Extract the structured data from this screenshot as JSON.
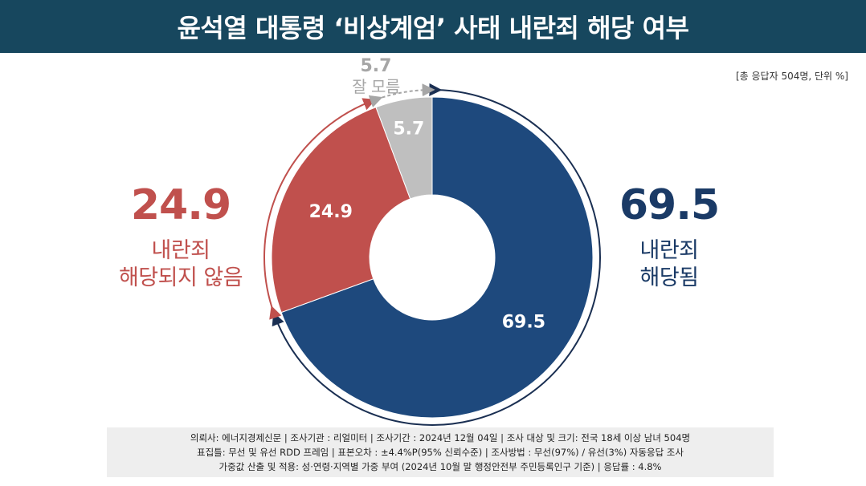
{
  "title": "윤석열 대통령 ‘비상계엄’ 사태 내란죄 해당 여부",
  "unit_note": "[총 응답자 504명, 단위 %]",
  "chart_data": {
    "type": "pie",
    "title": "윤석열 대통령 ‘비상계엄’ 사태 내란죄 해당 여부",
    "categories": [
      "내란죄 해당됨",
      "내란죄 해당되지 않음",
      "잘 모름"
    ],
    "values": [
      69.5,
      24.9,
      5.7
    ],
    "value_labels": [
      "69.5",
      "24.9",
      "5.7"
    ],
    "colors": [
      "#1e497d",
      "#c0504d",
      "#bfbfbf"
    ],
    "donut": true,
    "unit": "%"
  },
  "callouts": {
    "yes": {
      "value": "69.5",
      "line1": "내란죄",
      "line2": "해당됨",
      "color": "#1a3a66"
    },
    "no": {
      "value": "24.9",
      "line1": "내란죄",
      "line2": "해당되지 않음",
      "color": "#c0504d"
    },
    "unknown": {
      "value": "5.7",
      "line1": "잘 모름",
      "color": "#a6a6a6"
    }
  },
  "footer": {
    "line1": "의뢰사: 에너지경제신문 | 조사기관 : 리얼미터 | 조사기간 : 2024년 12월 04일 | 조사 대상 및 크기: 전국 18세 이상 남녀 504명",
    "line2": "표집틀: 무선 및 유선 RDD 프레임 | 표본오차 : ±4.4%P(95% 신뢰수준) | 조사방법 : 무선(97%) / 유선(3%) 자동응답 조사",
    "line3": "가중값 산출 및 적용: 성·연령·지역별 가중 부여 (2024년 10월 말 행정안전부 주민등록인구 기준) | 응답률 : 4.8%"
  }
}
